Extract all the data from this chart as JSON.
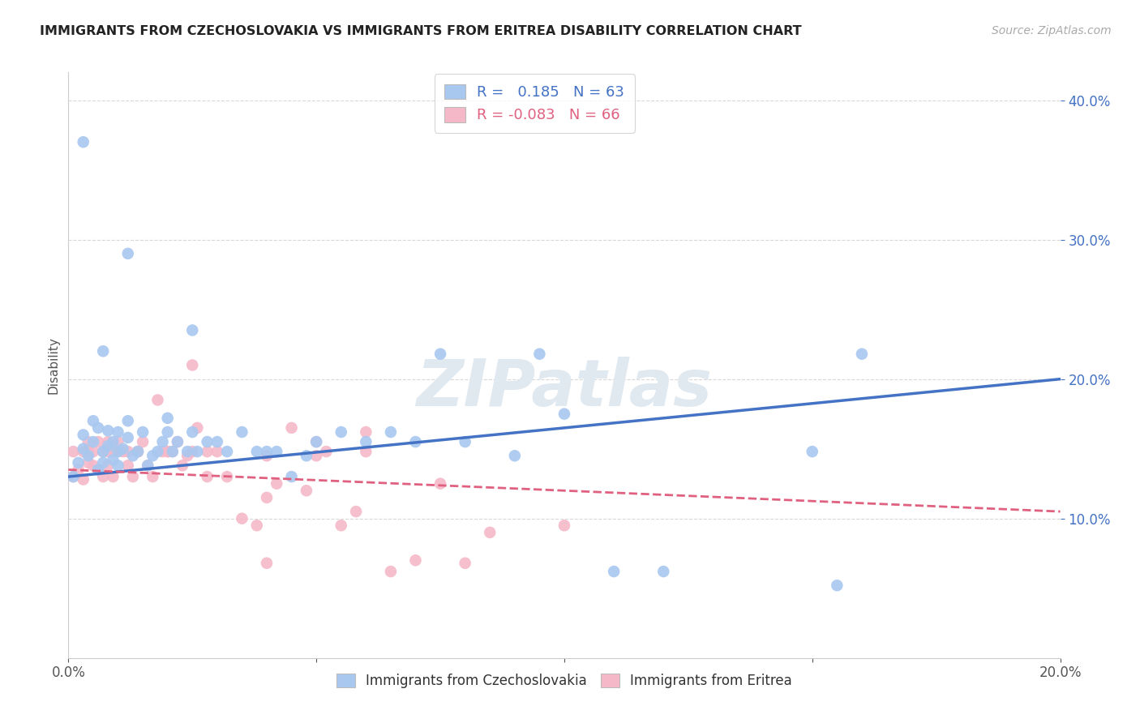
{
  "title": "IMMIGRANTS FROM CZECHOSLOVAKIA VS IMMIGRANTS FROM ERITREA DISABILITY CORRELATION CHART",
  "source": "Source: ZipAtlas.com",
  "ylabel": "Disability",
  "xlabel_blue": "Immigrants from Czechoslovakia",
  "xlabel_pink": "Immigrants from Eritrea",
  "watermark": "ZIPatlas",
  "blue_R": 0.185,
  "blue_N": 63,
  "pink_R": -0.083,
  "pink_N": 66,
  "xlim": [
    0.0,
    0.2
  ],
  "ylim": [
    0.0,
    0.42
  ],
  "yticks": [
    0.1,
    0.2,
    0.3,
    0.4
  ],
  "ytick_labels": [
    "10.0%",
    "20.0%",
    "30.0%",
    "40.0%"
  ],
  "xticks": [
    0.0,
    0.05,
    0.1,
    0.15,
    0.2
  ],
  "xtick_labels": [
    "0.0%",
    "",
    "",
    "",
    "20.0%"
  ],
  "blue_color": "#a8c8f0",
  "pink_color": "#f5b8c8",
  "blue_line_color": "#4472c4",
  "pink_line_color": "#e06080",
  "background_color": "#ffffff",
  "grid_color": "#d8d8d8",
  "blue_x": [
    0.001,
    0.002,
    0.003,
    0.003,
    0.004,
    0.005,
    0.005,
    0.006,
    0.006,
    0.007,
    0.007,
    0.008,
    0.008,
    0.009,
    0.009,
    0.01,
    0.01,
    0.01,
    0.011,
    0.012,
    0.012,
    0.013,
    0.014,
    0.015,
    0.016,
    0.017,
    0.018,
    0.019,
    0.02,
    0.021,
    0.022,
    0.024,
    0.025,
    0.026,
    0.028,
    0.03,
    0.032,
    0.035,
    0.038,
    0.04,
    0.042,
    0.045,
    0.048,
    0.05,
    0.055,
    0.06,
    0.065,
    0.07,
    0.075,
    0.08,
    0.09,
    0.095,
    0.1,
    0.11,
    0.12,
    0.15,
    0.155,
    0.16,
    0.003,
    0.007,
    0.012,
    0.02,
    0.025
  ],
  "blue_y": [
    0.13,
    0.14,
    0.15,
    0.16,
    0.145,
    0.155,
    0.17,
    0.135,
    0.165,
    0.148,
    0.14,
    0.152,
    0.163,
    0.142,
    0.155,
    0.148,
    0.162,
    0.138,
    0.15,
    0.158,
    0.17,
    0.145,
    0.148,
    0.162,
    0.138,
    0.145,
    0.148,
    0.155,
    0.162,
    0.148,
    0.155,
    0.148,
    0.162,
    0.148,
    0.155,
    0.155,
    0.148,
    0.162,
    0.148,
    0.148,
    0.148,
    0.13,
    0.145,
    0.155,
    0.162,
    0.155,
    0.162,
    0.155,
    0.218,
    0.155,
    0.145,
    0.218,
    0.175,
    0.062,
    0.062,
    0.148,
    0.052,
    0.218,
    0.37,
    0.22,
    0.29,
    0.172,
    0.235
  ],
  "pink_x": [
    0.001,
    0.001,
    0.002,
    0.003,
    0.003,
    0.004,
    0.004,
    0.005,
    0.005,
    0.006,
    0.006,
    0.007,
    0.007,
    0.008,
    0.008,
    0.009,
    0.009,
    0.01,
    0.01,
    0.011,
    0.012,
    0.012,
    0.013,
    0.014,
    0.015,
    0.016,
    0.017,
    0.018,
    0.019,
    0.02,
    0.021,
    0.022,
    0.023,
    0.024,
    0.025,
    0.026,
    0.028,
    0.03,
    0.032,
    0.035,
    0.038,
    0.04,
    0.042,
    0.045,
    0.048,
    0.05,
    0.052,
    0.055,
    0.058,
    0.06,
    0.065,
    0.07,
    0.075,
    0.08,
    0.004,
    0.008,
    0.014,
    0.02,
    0.028,
    0.04,
    0.05,
    0.06,
    0.085,
    0.1,
    0.025,
    0.04
  ],
  "pink_y": [
    0.13,
    0.148,
    0.135,
    0.128,
    0.148,
    0.14,
    0.155,
    0.138,
    0.148,
    0.135,
    0.155,
    0.13,
    0.148,
    0.148,
    0.138,
    0.148,
    0.13,
    0.148,
    0.155,
    0.148,
    0.138,
    0.148,
    0.13,
    0.148,
    0.155,
    0.138,
    0.13,
    0.185,
    0.148,
    0.148,
    0.148,
    0.155,
    0.138,
    0.145,
    0.148,
    0.165,
    0.13,
    0.148,
    0.13,
    0.1,
    0.095,
    0.115,
    0.125,
    0.165,
    0.12,
    0.155,
    0.148,
    0.095,
    0.105,
    0.162,
    0.062,
    0.07,
    0.125,
    0.068,
    0.148,
    0.155,
    0.148,
    0.148,
    0.148,
    0.145,
    0.145,
    0.148,
    0.09,
    0.095,
    0.21,
    0.068
  ]
}
